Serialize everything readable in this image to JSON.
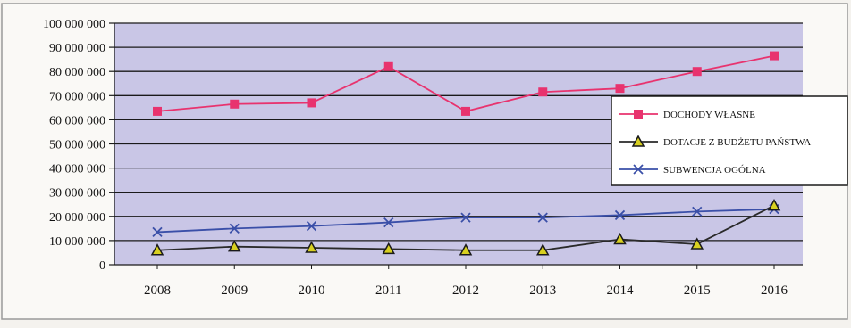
{
  "chart_data": {
    "type": "line",
    "categories": [
      "2008",
      "2009",
      "2010",
      "2011",
      "2012",
      "2013",
      "2014",
      "2015",
      "2016"
    ],
    "y_ticks": [
      "0",
      "10 000 000",
      "20 000 000",
      "30 000 000",
      "40 000 000",
      "50 000 000",
      "60 000 000",
      "70 000 000",
      "80 000 000",
      "90 000 000",
      "100 000 000"
    ],
    "ylim": [
      0,
      100000000
    ],
    "grid": true,
    "legend_position": "right",
    "series": [
      {
        "name": "DOCHODY WŁASNE",
        "color": "#e8336e",
        "marker": "square",
        "values": [
          63500000,
          66500000,
          67000000,
          82000000,
          63500000,
          71500000,
          73000000,
          80000000,
          86500000
        ]
      },
      {
        "name": "DOTACJE Z BUDŻETU PAŃSTWA",
        "color": "#2a2a2a",
        "marker": "triangle",
        "marker_color": "#d8d020",
        "values": [
          6000000,
          7500000,
          7000000,
          6500000,
          6000000,
          6000000,
          10500000,
          8500000,
          24500000
        ]
      },
      {
        "name": "SUBWENCJA OGÓLNA",
        "color": "#3a4fa8",
        "marker": "x",
        "values": [
          13500000,
          15000000,
          16000000,
          17500000,
          19500000,
          19500000,
          20500000,
          22000000,
          23000000
        ]
      }
    ]
  }
}
